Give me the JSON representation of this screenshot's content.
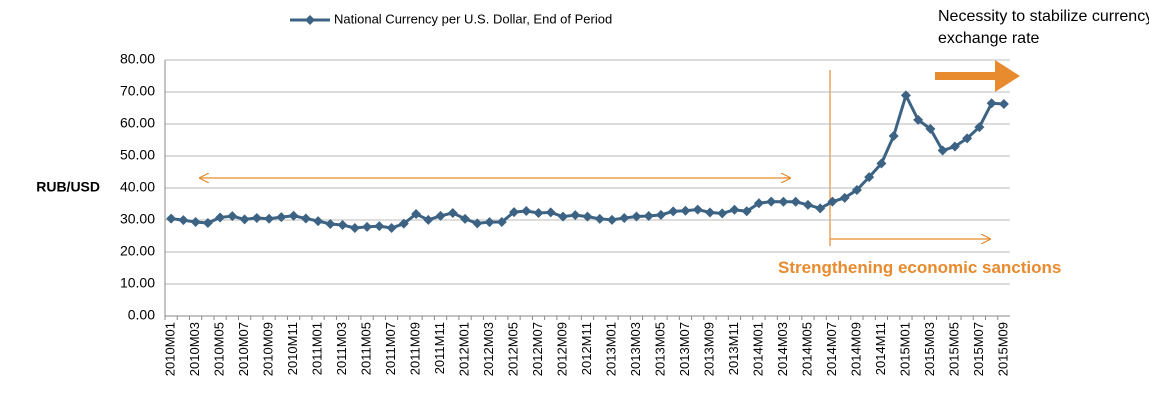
{
  "chart_data": {
    "type": "line",
    "legend": "top",
    "y_label": "RUB/USD",
    "annotations": [
      "Necessity to stabilize currency exchange rate",
      "Strengthening economic sanctions"
    ],
    "categories": [
      "2010M01",
      null,
      "2010M03",
      null,
      "2010M05",
      null,
      "2010M07",
      null,
      "2010M09",
      null,
      "2010M11",
      null,
      "2011M01",
      null,
      "2011M03",
      null,
      "2011M05",
      null,
      "2011M07",
      null,
      "2011M09",
      null,
      "2011M11",
      null,
      "2012M01",
      null,
      "2012M03",
      null,
      "2012M05",
      null,
      "2012M07",
      null,
      "2012M09",
      null,
      "2012M11",
      null,
      "2013M01",
      null,
      "2013M03",
      null,
      "2013M05",
      null,
      "2013M07",
      null,
      "2013M09",
      null,
      "2013M11",
      null,
      "2014M01",
      null,
      "2014M03",
      null,
      "2014M05",
      null,
      "2014M07",
      null,
      "2014M09",
      null,
      "2014M11",
      null,
      "2015M01",
      null,
      "2015M03",
      null,
      "2015M05",
      null,
      "2015M07",
      null,
      "2015M09"
    ],
    "series": [
      {
        "name": "National Currency per U.S. Dollar, End of Period",
        "color": "#3c6383",
        "values": [
          30.43,
          29.95,
          29.36,
          29.05,
          30.8,
          31.2,
          30.19,
          30.64,
          30.4,
          30.89,
          31.32,
          30.48,
          29.66,
          28.76,
          28.43,
          27.5,
          27.87,
          28.08,
          27.49,
          28.85,
          31.88,
          30.02,
          31.29,
          32.2,
          30.36,
          28.95,
          29.33,
          29.38,
          32.46,
          32.82,
          32.19,
          32.37,
          31.06,
          31.53,
          31.05,
          30.37,
          30.03,
          30.62,
          31.08,
          31.26,
          31.61,
          32.71,
          32.89,
          33.26,
          32.35,
          32.06,
          33.2,
          32.73,
          35.24,
          35.75,
          35.69,
          35.7,
          34.74,
          33.63,
          35.73,
          36.93,
          39.39,
          43.39,
          47.65,
          56.26,
          68.93,
          61.29,
          58.46,
          51.7,
          52.97,
          55.52,
          59.04,
          66.47,
          66.24
        ]
      }
    ],
    "ylim": [
      0,
      80
    ],
    "yticks": [
      {
        "value": 0,
        "label": "0.00"
      },
      {
        "value": 10,
        "label": "10.00"
      },
      {
        "value": 20,
        "label": "20.00"
      },
      {
        "value": 30,
        "label": "30.00"
      },
      {
        "value": 40,
        "label": "40.00"
      },
      {
        "value": 50,
        "label": "50.00"
      },
      {
        "value": 60,
        "label": "60.00"
      },
      {
        "value": 70,
        "label": "70.00"
      },
      {
        "value": 80,
        "label": "80.00"
      }
    ],
    "grid": true
  }
}
